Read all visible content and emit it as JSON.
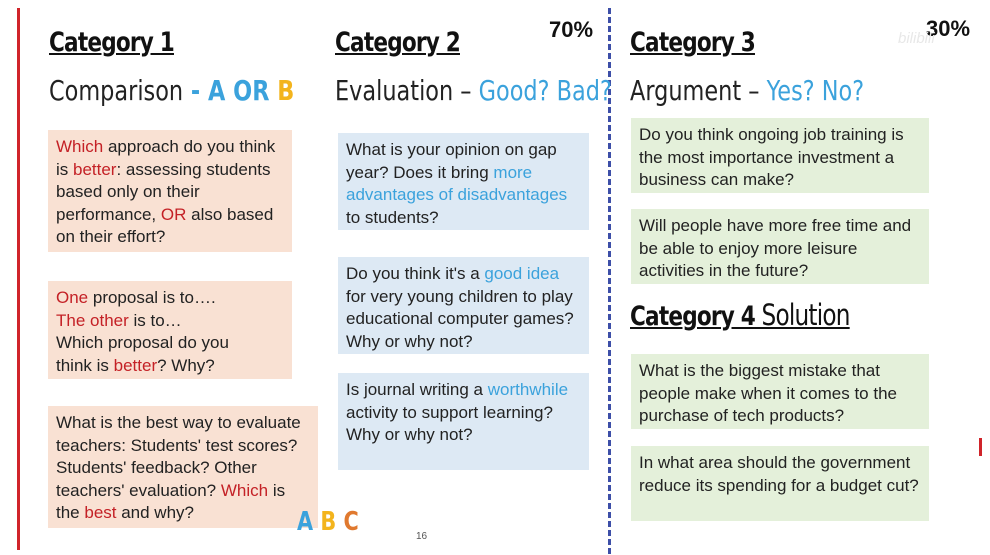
{
  "percent_left": "70%",
  "percent_right": "30%",
  "watermark": "bilibili",
  "page_number": "16",
  "category1": {
    "title": "Category 1",
    "subtitle_main": "Comparison",
    "subtitle_dash": " - ",
    "subtitle_a": "A",
    "subtitle_or": " OR ",
    "subtitle_b": "B",
    "box1": {
      "t1": "Which",
      "t2": " approach do you think is ",
      "t3": "better",
      "t4": ": assessing students based only on their performance, ",
      "t5": "OR",
      "t6": " also based on their effort?"
    },
    "box2": {
      "l1a": "One",
      "l1b": " proposal is to….",
      "l2a": "The other",
      "l2b": " is to…",
      "l3": "Which proposal do you",
      "l4a": "think is ",
      "l4b": "better",
      "l4c": "? Why?"
    },
    "box3": {
      "t1": "What is the best way to evaluate teachers: Students' test scores? Students' feedback? Other teachers' evaluation? ",
      "t2": "Which",
      "t3": " is the ",
      "t4": "best",
      "t5": " and why?"
    },
    "abc": {
      "a": "A",
      "b": "B",
      "c": "C"
    },
    "abc_colors": {
      "a": "#3ba2dc",
      "b": "#f3b41d",
      "c": "#e0792f"
    }
  },
  "category2": {
    "title": "Category 2",
    "subtitle_main": "Evaluation – ",
    "subtitle_hl": "Good? Bad?",
    "box1": {
      "t1": "What is your opinion on gap year? Does it bring ",
      "t2": "more advantages of disadvantages",
      "t3": " to students?"
    },
    "box2": {
      "t1": "Do you think it's a ",
      "t2": "good idea",
      "t3": " for very young children to play educational computer games? Why or why not?"
    },
    "box3": {
      "t1": "Is journal writing a ",
      "t2": "worthwhile",
      "t3": " activity to support learning? Why or why not?"
    }
  },
  "category3": {
    "title": "Category 3",
    "subtitle_main": "Argument – ",
    "subtitle_hl": "Yes? No?",
    "box1": "Do you think ongoing job training is the most importance investment a business can make?",
    "box2": "Will people have more free time and be able to enjoy more leisure activities in the future?"
  },
  "category4": {
    "title": "Category 4",
    "subtitle": " Solution",
    "box1": "What is the biggest mistake that people make when it comes to the purchase of tech products?",
    "box2": "In what area should the government reduce its spending for a budget cut?"
  }
}
